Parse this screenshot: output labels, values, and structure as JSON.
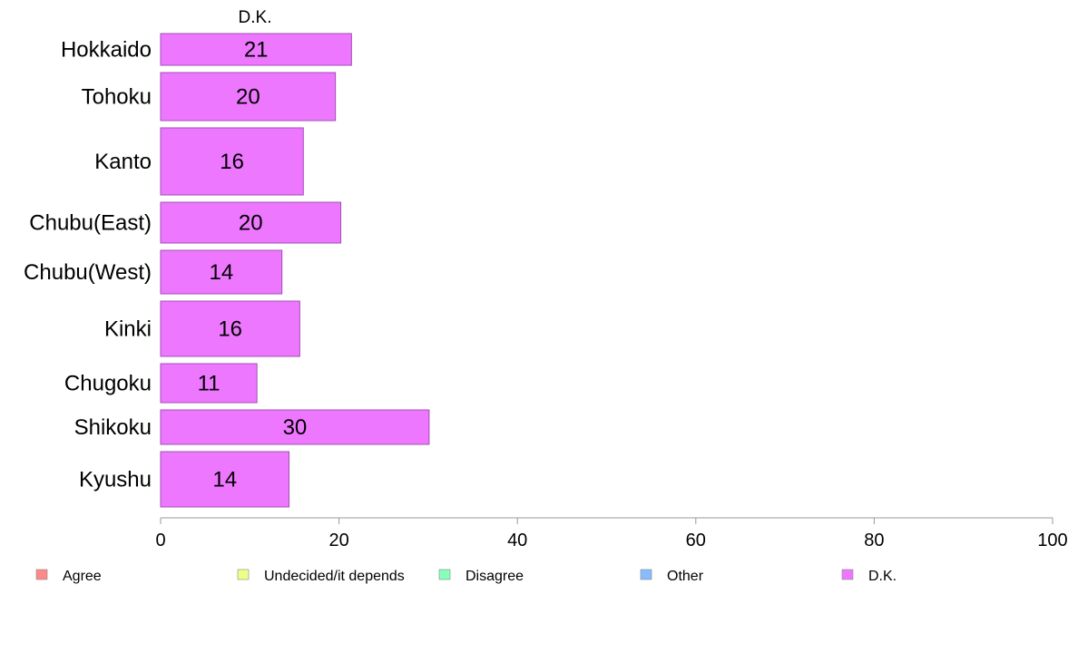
{
  "chart_data": {
    "type": "bar",
    "orientation": "horizontal",
    "column_title": "D.K.",
    "categories": [
      "Hokkaido",
      "Tohoku",
      "Kanto",
      "Chubu(East)",
      "Chubu(West)",
      "Kinki",
      "Chugoku",
      "Shikoku",
      "Kyushu"
    ],
    "series": [
      {
        "name": "D.K.",
        "values": [
          21.4,
          19.6,
          16.0,
          20.2,
          13.6,
          15.6,
          10.8,
          30.1,
          14.4
        ],
        "labels": [
          "21",
          "20",
          "16",
          "20",
          "14",
          "16",
          "11",
          "30",
          "14"
        ]
      }
    ],
    "bar_color": "#ee77ff",
    "bar_edge_color": "#a050b0",
    "xlim": [
      0,
      100
    ],
    "xticks": [
      "0",
      "20",
      "40",
      "60",
      "80",
      "100"
    ],
    "xlabel": "",
    "ylabel": "",
    "grid": false,
    "legend": {
      "placement": "bottom",
      "items": [
        {
          "label": "Agree",
          "color": "#ff8888"
        },
        {
          "label": "Undecided/it depends",
          "color": "#eeff88"
        },
        {
          "label": "Disagree",
          "color": "#88ffbb"
        },
        {
          "label": "Other",
          "color": "#88bbff"
        },
        {
          "label": "D.K.",
          "color": "#ee77ff"
        }
      ]
    }
  }
}
